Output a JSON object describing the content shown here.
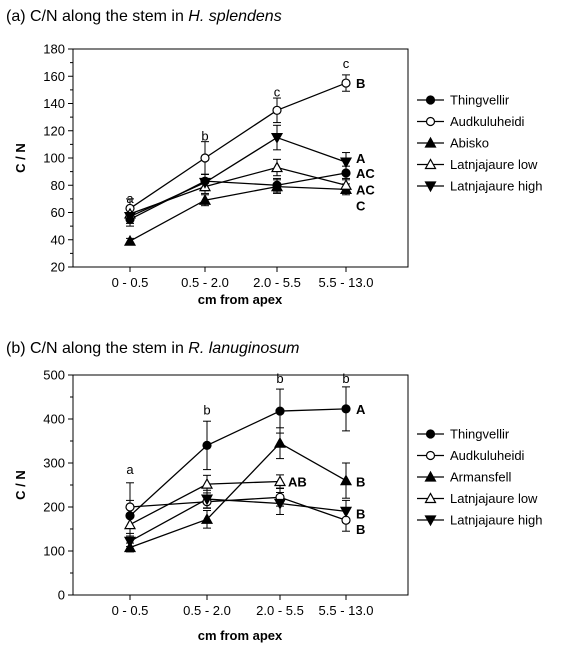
{
  "chart_data": [
    {
      "type": "line",
      "title_prefix": "(a) C/N along the stem in ",
      "title_species": "H. splendens",
      "xlabel": "cm from apex",
      "ylabel": "C / N",
      "categories": [
        "0 - 0.5",
        "0.5 - 2.0",
        "2.0 - 5.5",
        "5.5 - 13.0"
      ],
      "ylim": [
        20,
        180
      ],
      "yticks": [
        20,
        40,
        60,
        80,
        100,
        120,
        140,
        160,
        180
      ],
      "grid": false,
      "legend_position": "right",
      "series": [
        {
          "name": "Thingvellir",
          "marker": "circle",
          "filled": true,
          "values": [
            55,
            83,
            80,
            89
          ],
          "errors": [
            5,
            5,
            5,
            5
          ]
        },
        {
          "name": "Audkuluheidi",
          "marker": "circle",
          "filled": false,
          "values": [
            63,
            100,
            135,
            155
          ],
          "errors": [
            7,
            12,
            9,
            6
          ]
        },
        {
          "name": "Abisko",
          "marker": "triangle-up",
          "filled": true,
          "values": [
            39,
            69,
            79,
            77
          ],
          "errors": [
            2,
            4,
            5,
            4
          ]
        },
        {
          "name": "Latnjajaure low",
          "marker": "triangle-up",
          "filled": false,
          "values": [
            59,
            79,
            93,
            80
          ],
          "errors": [
            5,
            5,
            6,
            5
          ]
        },
        {
          "name": "Latnjajaure high",
          "marker": "triangle-down",
          "filled": true,
          "values": [
            57,
            82,
            115,
            97
          ],
          "errors": [
            5,
            6,
            9,
            7
          ]
        }
      ],
      "stage_letters": [
        {
          "text": "a",
          "category": 0,
          "y": 67
        },
        {
          "text": "b",
          "category": 1,
          "y": 113
        },
        {
          "text": "c",
          "category": 2,
          "y": 145
        },
        {
          "text": "c",
          "category": 3,
          "y": 166
        }
      ],
      "group_letters": [
        {
          "text": "B",
          "y": 155
        },
        {
          "text": "A",
          "y": 100
        },
        {
          "text": "AC",
          "y": 89
        },
        {
          "text": "AC",
          "y": 77
        },
        {
          "text": "C",
          "y": 65
        }
      ]
    },
    {
      "type": "line",
      "title_prefix": "(b) C/N along the stem in ",
      "title_species": "R. lanuginosum",
      "xlabel": "cm from apex",
      "ylabel": "C / N",
      "categories": [
        "0 - 0.5",
        "0.5 - 2.0",
        "2.0 - 5.5",
        "5.5 - 13.0"
      ],
      "ylim": [
        0,
        500
      ],
      "yticks": [
        0,
        100,
        200,
        300,
        400,
        500
      ],
      "grid": false,
      "legend_position": "right",
      "series": [
        {
          "name": "Thingvellir",
          "marker": "circle",
          "filled": true,
          "values": [
            180,
            340,
            418,
            423
          ],
          "errors": [
            75,
            55,
            50,
            50
          ]
        },
        {
          "name": "Audkuluheidi",
          "marker": "circle",
          "filled": false,
          "values": [
            200,
            212,
            222,
            170
          ],
          "errors": [
            15,
            15,
            20,
            25
          ]
        },
        {
          "name": "Armansfell",
          "marker": "triangle-up",
          "filled": true,
          "values": [
            108,
            172,
            345,
            260
          ],
          "errors": [
            10,
            20,
            35,
            40
          ]
        },
        {
          "name": "Latnjajaure low",
          "marker": "triangle-up",
          "filled": false,
          "values": [
            160,
            252,
            258,
            null
          ],
          "errors": [
            20,
            20,
            15,
            null
          ]
        },
        {
          "name": "Latnjajaure high",
          "marker": "triangle-down",
          "filled": true,
          "values": [
            122,
            218,
            208,
            190
          ],
          "errors": [
            12,
            20,
            25,
            25
          ]
        }
      ],
      "stage_letters": [
        {
          "text": "a",
          "category": 0,
          "y": 275
        },
        {
          "text": "b",
          "category": 1,
          "y": 410
        },
        {
          "text": "b",
          "category": 2,
          "y": 482
        },
        {
          "text": "b",
          "category": 3,
          "y": 482
        }
      ],
      "group_letters": [
        {
          "text": "A",
          "category": 3,
          "y": 423
        },
        {
          "text": "AB",
          "category": 2,
          "y": 258
        },
        {
          "text": "B",
          "category": 3,
          "y": 258
        },
        {
          "text": "B",
          "category": 3,
          "y": 185
        },
        {
          "text": "B",
          "category": 3,
          "y": 150
        }
      ]
    }
  ]
}
